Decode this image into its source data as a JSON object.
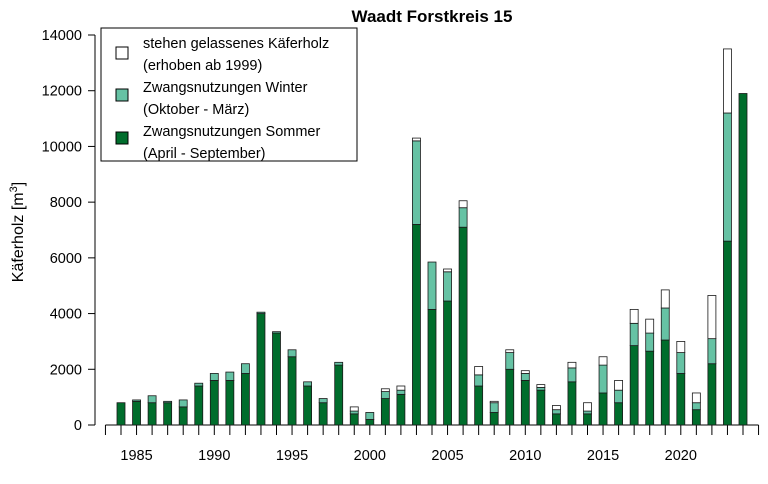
{
  "chart_data": {
    "type": "bar",
    "stacked": true,
    "title": "Waadt Forstkreis 15",
    "ylabel_main": "Käferholz [m",
    "ylabel_sup": "3",
    "ylabel_close": "]",
    "xlabel": "",
    "ylim": [
      0,
      14000
    ],
    "y_ticks": [
      0,
      2000,
      4000,
      6000,
      8000,
      10000,
      12000,
      14000
    ],
    "x_tick_labels": [
      1985,
      1990,
      1995,
      2000,
      2005,
      2010,
      2015,
      2020
    ],
    "grid": false,
    "legend_position": "top-left",
    "legend": [
      {
        "key": "stehen",
        "line1": "stehen gelassenes Käferholz",
        "line2": "(erhoben ab 1999)",
        "color": "#ffffff"
      },
      {
        "key": "winter",
        "line1": "Zwangsnutzungen Winter",
        "line2": "(Oktober - März)",
        "color": "#66c2a4"
      },
      {
        "key": "sommer",
        "line1": "Zwangsnutzungen Sommer",
        "line2": "(April - September)",
        "color": "#006d2c"
      }
    ],
    "years": [
      1984,
      1985,
      1986,
      1987,
      1988,
      1989,
      1990,
      1991,
      1992,
      1993,
      1994,
      1995,
      1996,
      1997,
      1998,
      1999,
      2000,
      2001,
      2002,
      2003,
      2004,
      2005,
      2006,
      2007,
      2008,
      2009,
      2010,
      2011,
      2012,
      2013,
      2014,
      2015,
      2016,
      2017,
      2018,
      2019,
      2020,
      2021,
      2022,
      2023,
      2024
    ],
    "series": [
      {
        "name": "Zwangsnutzungen Sommer (April - September)",
        "key": "sommer",
        "color": "#006d2c",
        "values": [
          800,
          850,
          800,
          800,
          650,
          1400,
          1600,
          1600,
          1850,
          4000,
          3300,
          2450,
          1400,
          800,
          2150,
          400,
          200,
          950,
          1100,
          7200,
          4150,
          4450,
          7100,
          1400,
          450,
          2000,
          1600,
          1250,
          400,
          1550,
          400,
          1150,
          800,
          2850,
          2650,
          3050,
          1850,
          550,
          2200,
          6600,
          11900
        ]
      },
      {
        "name": "Zwangsnutzungen Winter (Oktober - März)",
        "key": "winter",
        "color": "#66c2a4",
        "values": [
          0,
          50,
          250,
          50,
          250,
          100,
          250,
          300,
          350,
          50,
          50,
          250,
          150,
          150,
          100,
          100,
          250,
          250,
          150,
          3000,
          1700,
          1050,
          700,
          400,
          350,
          600,
          250,
          100,
          150,
          500,
          100,
          1000,
          450,
          800,
          650,
          1150,
          750,
          250,
          900,
          4600,
          0
        ]
      },
      {
        "name": "stehen gelassenes Käferholz (erhoben ab 1999)",
        "key": "stehen",
        "color": "#ffffff",
        "values": [
          0,
          0,
          0,
          0,
          0,
          0,
          0,
          0,
          0,
          0,
          0,
          0,
          0,
          0,
          0,
          150,
          0,
          100,
          150,
          100,
          0,
          100,
          250,
          300,
          50,
          100,
          100,
          100,
          150,
          200,
          300,
          300,
          350,
          500,
          500,
          650,
          400,
          350,
          1550,
          2300,
          0
        ]
      }
    ]
  }
}
